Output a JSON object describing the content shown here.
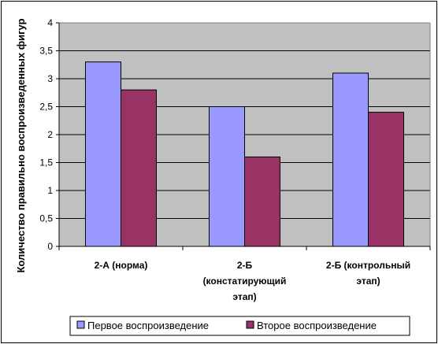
{
  "chart_data": {
    "type": "bar",
    "categories": [
      [
        "2-А (норма)"
      ],
      [
        "2-Б",
        "(констатирующий",
        "этап)"
      ],
      [
        "2-Б (контрольный",
        "этап)"
      ]
    ],
    "series": [
      {
        "name": "Первое воспроизведение",
        "values": [
          3.3,
          2.5,
          3.1
        ],
        "color": "#9999ff"
      },
      {
        "name": "Второе воспроизведение",
        "values": [
          2.8,
          1.6,
          2.4
        ],
        "color": "#993366"
      }
    ],
    "title": "",
    "xlabel": "",
    "ylabel": "Количество правильно воспроизведенных фигур",
    "ylim": [
      0,
      4
    ],
    "yticks": [
      "0",
      "0,5",
      "1",
      "1,5",
      "2",
      "2,5",
      "3",
      "3,5",
      "4"
    ],
    "grid": true,
    "plot_background": "#c0c0c0",
    "legend_position": "bottom"
  }
}
